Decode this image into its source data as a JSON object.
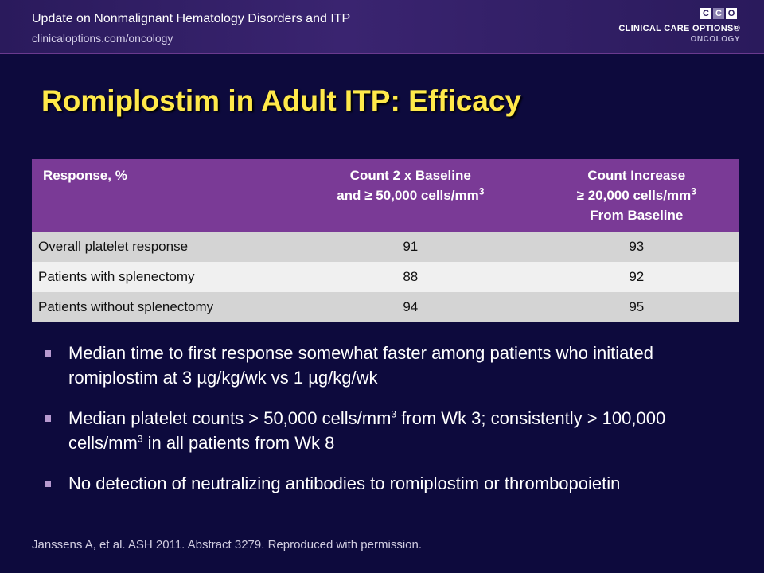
{
  "header": {
    "title": "Update on Nonmalignant Hematology Disorders and ITP",
    "url": "clinicaloptions.com/oncology"
  },
  "logo": {
    "letters": [
      "C",
      "C",
      "O"
    ],
    "line1": "CLINICAL CARE OPTIONS®",
    "line2": "ONCOLOGY"
  },
  "slide_title": "Romiplostim in Adult ITP: Efficacy",
  "table": {
    "headers": {
      "col0": "Response, %",
      "col1_a": "Count 2 x Baseline",
      "col1_b": "and ≥ 50,000 cells/mm",
      "col1_sup": "3",
      "col2_a": "Count Increase",
      "col2_b": "≥ 20,000 cells/mm",
      "col2_sup": "3",
      "col2_c": "From Baseline"
    },
    "rows": [
      {
        "label": "Overall platelet response",
        "v1": "91",
        "v2": "93"
      },
      {
        "label": "Patients with splenectomy",
        "v1": "88",
        "v2": "92"
      },
      {
        "label": "Patients without splenectomy",
        "v1": "94",
        "v2": "95"
      }
    ]
  },
  "bullets": {
    "b1": "Median time to first response somewhat faster among patients who initiated romiplostim at 3 µg/kg/wk vs 1 µg/kg/wk",
    "b2_a": "Median platelet counts > 50,000 cells/mm",
    "b2_sup1": "3",
    "b2_b": " from Wk 3; consistently > 100,000 cells/mm",
    "b2_sup2": "3",
    "b2_c": " in all patients from Wk 8",
    "b3": "No detection of neutralizing antibodies to romiplostim or thrombopoietin"
  },
  "footnote": "Janssens A, et al. ASH 2011. Abstract 3279. Reproduced with permission."
}
